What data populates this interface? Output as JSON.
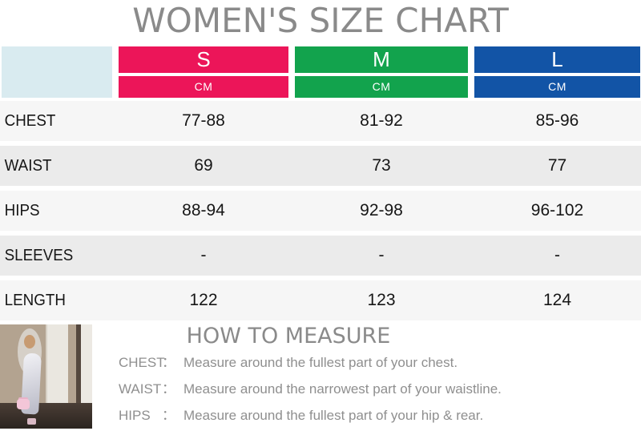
{
  "title": "WOMEN'S SIZE CHART",
  "colors": {
    "size_s": "#ec1559",
    "size_m": "#12a34d",
    "size_l": "#1254a6",
    "corner_cell": "#d9ebf0",
    "title_gray": "#8a8a8a",
    "row_light": "#f6f6f6",
    "row_dark": "#ebebeb",
    "text_dark": "#161616"
  },
  "size_chart": {
    "unit_label": "CM",
    "columns": [
      {
        "label": "S",
        "color": "#ec1559"
      },
      {
        "label": "M",
        "color": "#12a34d"
      },
      {
        "label": "L",
        "color": "#1254a6"
      }
    ],
    "rows": [
      {
        "label": "CHEST",
        "values": [
          "77-88",
          "81-92",
          "85-96"
        ]
      },
      {
        "label": "WAIST",
        "values": [
          "69",
          "73",
          "77"
        ]
      },
      {
        "label": "HIPS",
        "values": [
          "88-94",
          "92-98",
          "96-102"
        ]
      },
      {
        "label": "SLEEVES",
        "values": [
          "-",
          "-",
          "-"
        ]
      },
      {
        "label": "LENGTH",
        "values": [
          "122",
          "123",
          "124"
        ]
      }
    ]
  },
  "how_to_measure": {
    "heading": "HOW TO MEASURE",
    "colon": "：",
    "items": [
      {
        "label": "CHEST",
        "text": "Measure around the fullest part of your chest."
      },
      {
        "label": "WAIST",
        "text": "Measure around the narrowest part of your waistline."
      },
      {
        "label": "HIPS",
        "text": "Measure around the fullest part of your hip & rear."
      }
    ]
  },
  "photo": {
    "name": "model-photo"
  },
  "chart_data": {
    "type": "table",
    "title": "WOMEN'S SIZE CHART",
    "unit": "CM",
    "columns": [
      "",
      "S",
      "M",
      "L"
    ],
    "rows": [
      [
        "CHEST",
        "77-88",
        "81-92",
        "85-96"
      ],
      [
        "WAIST",
        "69",
        "73",
        "77"
      ],
      [
        "HIPS",
        "88-94",
        "92-98",
        "96-102"
      ],
      [
        "SLEEVES",
        "-",
        "-",
        "-"
      ],
      [
        "LENGTH",
        "122",
        "123",
        "124"
      ]
    ]
  }
}
